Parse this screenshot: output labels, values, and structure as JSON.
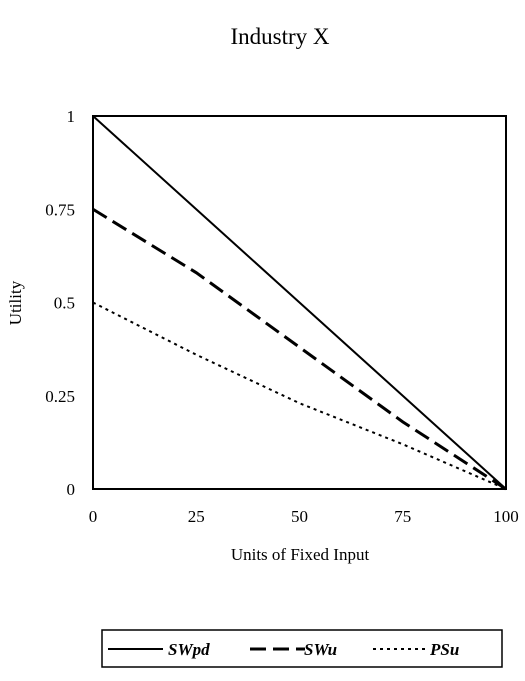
{
  "chart_data": {
    "type": "line",
    "title": "Industry X",
    "xlabel": "Units of Fixed Input",
    "ylabel": "Utility",
    "x": [
      0,
      25,
      50,
      75,
      100
    ],
    "xlim": [
      0,
      100
    ],
    "ylim": [
      0,
      1
    ],
    "x_ticks": [
      "0",
      "25",
      "50",
      "75",
      "100"
    ],
    "y_ticks": [
      "0",
      "0.25",
      "0.5",
      "0.75",
      "1"
    ],
    "grid": false,
    "legend_position": "bottom",
    "series": [
      {
        "name": "SWpd",
        "style": "solid",
        "color": "#000000",
        "values": [
          1.0,
          0.75,
          0.5,
          0.25,
          0.0
        ]
      },
      {
        "name": "SWu",
        "style": "dashed",
        "color": "#000000",
        "values": [
          0.75,
          0.58,
          0.38,
          0.18,
          0.0
        ]
      },
      {
        "name": "PSu",
        "style": "dotted",
        "color": "#000000",
        "values": [
          0.5,
          0.36,
          0.23,
          0.12,
          0.0
        ]
      }
    ]
  }
}
